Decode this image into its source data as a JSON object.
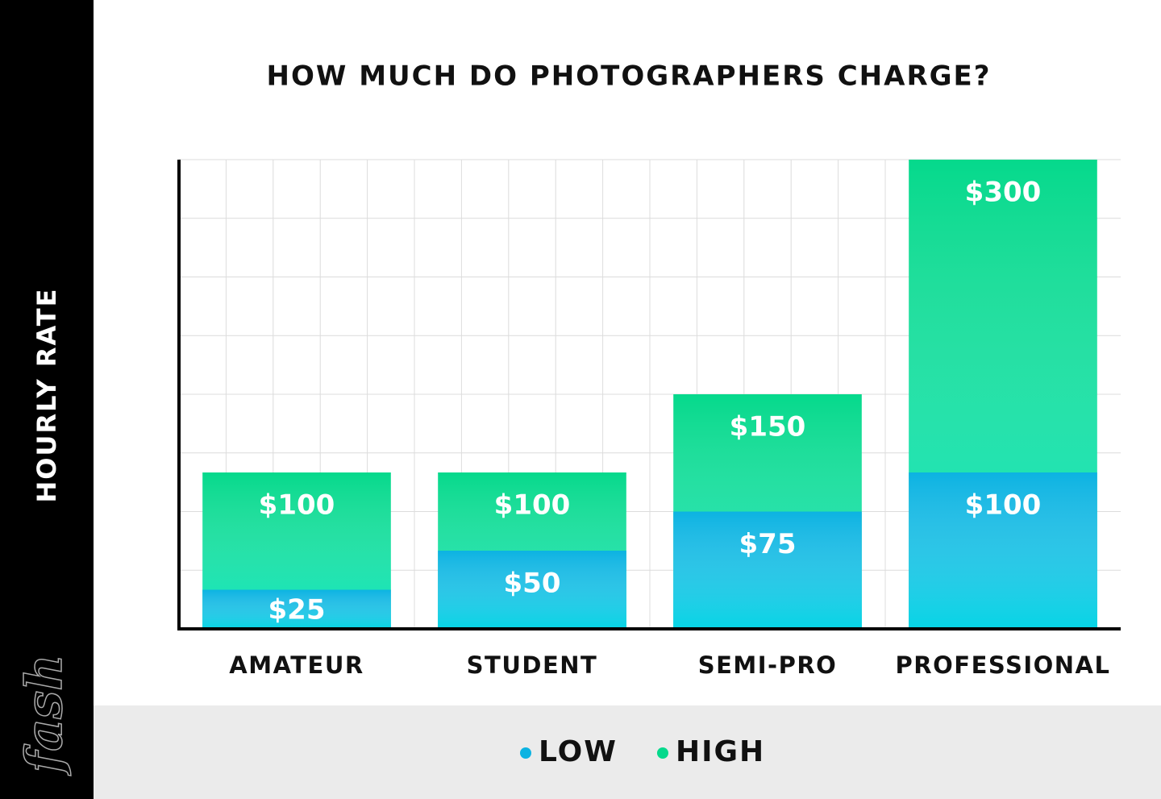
{
  "chart_data": {
    "type": "bar",
    "title": "HOW MUCH DO PHOTOGRAPHERS CHARGE?",
    "y_label": "HOURLY RATE",
    "logo": "fash",
    "categories": [
      "AMATEUR",
      "STUDENT",
      "SEMI-PRO",
      "PROFESSIONAL"
    ],
    "series": [
      {
        "name": "HIGH",
        "color": "#05d98c",
        "values": [
          100,
          100,
          150,
          300
        ],
        "value_labels": [
          "$100",
          "$100",
          "$150",
          "$300"
        ]
      },
      {
        "name": "LOW",
        "color": "#0cb3e2",
        "values": [
          25,
          50,
          75,
          100
        ],
        "value_labels": [
          "$25",
          "$50",
          "$75",
          "$100"
        ]
      }
    ],
    "ylim": [
      0,
      300
    ],
    "grid": true
  }
}
